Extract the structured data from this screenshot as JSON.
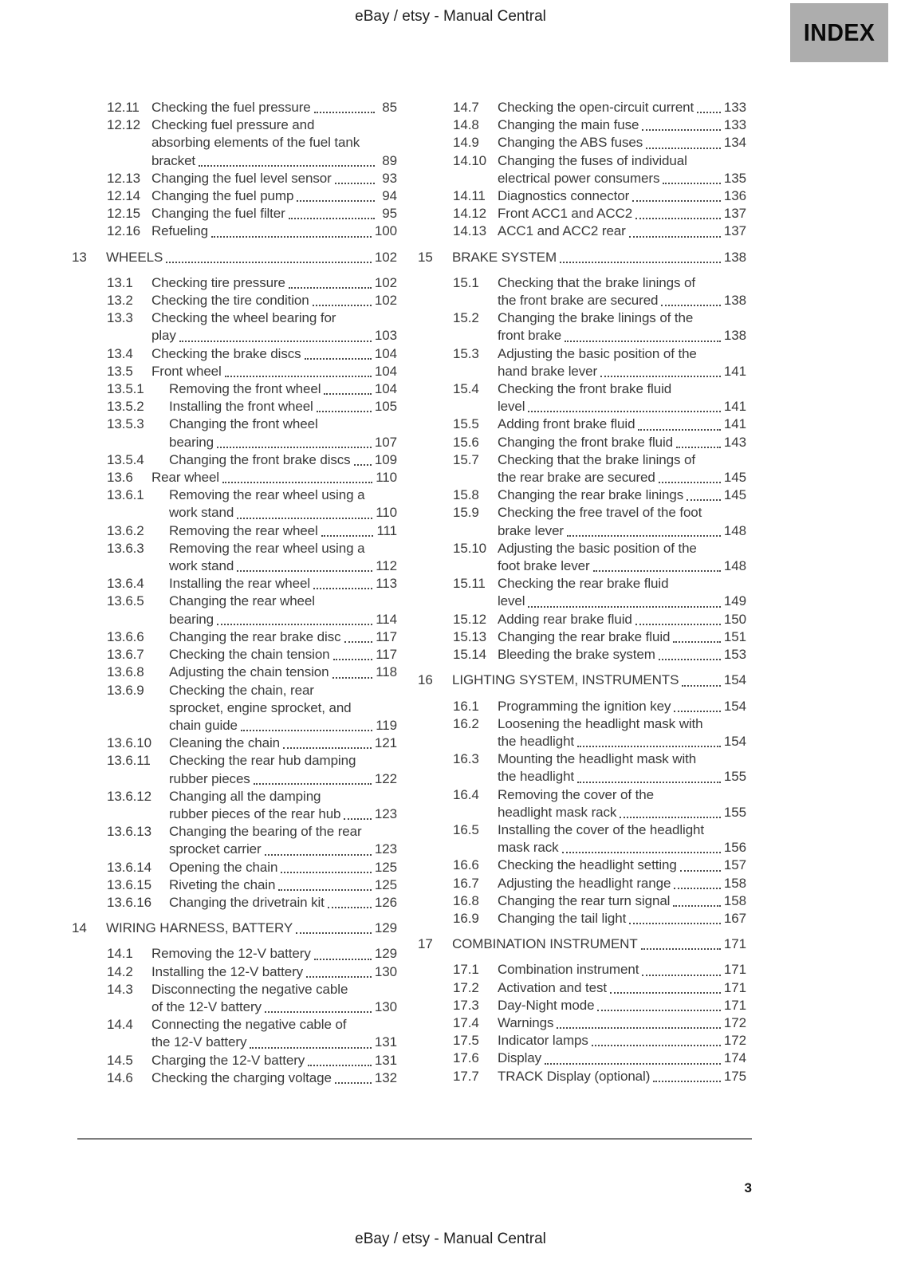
{
  "header": {
    "title": "eBay / etsy - Manual Central",
    "index_label": "INDEX"
  },
  "footer": {
    "page_number": "3",
    "title": "eBay / etsy - Manual Central"
  },
  "colors": {
    "index_badge_bg": "#adadad",
    "text": "#3a3a3a",
    "rule": "#7d7d7d"
  },
  "toc": {
    "columns": [
      {
        "side": "left",
        "entries": [
          {
            "num": "12.11",
            "level": 2,
            "lines": [
              "Checking the fuel pressure"
            ],
            "page": "85"
          },
          {
            "num": "12.12",
            "level": 2,
            "lines": [
              "Checking fuel pressure and",
              "absorbing elements of the fuel tank",
              "bracket"
            ],
            "page": "89"
          },
          {
            "num": "12.13",
            "level": 2,
            "lines": [
              "Changing the fuel level sensor"
            ],
            "page": "93"
          },
          {
            "num": "12.14",
            "level": 2,
            "lines": [
              "Changing the fuel pump"
            ],
            "page": "94"
          },
          {
            "num": "12.15",
            "level": 2,
            "lines": [
              "Changing the fuel filter"
            ],
            "page": "95"
          },
          {
            "num": "12.16",
            "level": 2,
            "lines": [
              "Refueling"
            ],
            "page": "100"
          },
          {
            "num": "13",
            "level": 1,
            "lines": [
              "WHEELS"
            ],
            "page": "102"
          },
          {
            "num": "13.1",
            "level": 2,
            "lines": [
              "Checking tire pressure"
            ],
            "page": "102"
          },
          {
            "num": "13.2",
            "level": 2,
            "lines": [
              "Checking the tire condition"
            ],
            "page": "102"
          },
          {
            "num": "13.3",
            "level": 2,
            "lines": [
              "Checking the wheel bearing for",
              "play"
            ],
            "page": "103"
          },
          {
            "num": "13.4",
            "level": 2,
            "lines": [
              "Checking the brake discs"
            ],
            "page": "104"
          },
          {
            "num": "13.5",
            "level": 2,
            "lines": [
              "Front wheel"
            ],
            "page": "104"
          },
          {
            "num": "13.5.1",
            "level": 3,
            "lines": [
              "Removing the front wheel"
            ],
            "page": "104"
          },
          {
            "num": "13.5.2",
            "level": 3,
            "lines": [
              "Installing the front wheel"
            ],
            "page": "105"
          },
          {
            "num": "13.5.3",
            "level": 3,
            "lines": [
              "Changing the front wheel",
              "bearing"
            ],
            "page": "107"
          },
          {
            "num": "13.5.4",
            "level": 3,
            "lines": [
              "Changing the front brake discs"
            ],
            "page": "109"
          },
          {
            "num": "13.6",
            "level": 2,
            "lines": [
              "Rear wheel"
            ],
            "page": "110"
          },
          {
            "num": "13.6.1",
            "level": 3,
            "lines": [
              "Removing the rear wheel using a",
              "work stand"
            ],
            "page": "110"
          },
          {
            "num": "13.6.2",
            "level": 3,
            "lines": [
              "Removing the rear wheel"
            ],
            "page": "111"
          },
          {
            "num": "13.6.3",
            "level": 3,
            "lines": [
              "Removing the rear wheel using a",
              "work stand"
            ],
            "page": "112"
          },
          {
            "num": "13.6.4",
            "level": 3,
            "lines": [
              "Installing the rear wheel"
            ],
            "page": "113"
          },
          {
            "num": "13.6.5",
            "level": 3,
            "lines": [
              "Changing the rear wheel",
              "bearing"
            ],
            "page": "114"
          },
          {
            "num": "13.6.6",
            "level": 3,
            "lines": [
              "Changing the rear brake disc"
            ],
            "page": "117"
          },
          {
            "num": "13.6.7",
            "level": 3,
            "lines": [
              "Checking the chain tension"
            ],
            "page": "117"
          },
          {
            "num": "13.6.8",
            "level": 3,
            "lines": [
              "Adjusting the chain tension"
            ],
            "page": "118"
          },
          {
            "num": "13.6.9",
            "level": 3,
            "lines": [
              "Checking the chain, rear",
              "sprocket, engine sprocket, and",
              "chain guide"
            ],
            "page": "119"
          },
          {
            "num": "13.6.10",
            "level": 3,
            "lines": [
              "Cleaning the chain"
            ],
            "page": "121"
          },
          {
            "num": "13.6.11",
            "level": 3,
            "lines": [
              "Checking the rear hub damping",
              "rubber pieces"
            ],
            "page": "122"
          },
          {
            "num": "13.6.12",
            "level": 3,
            "lines": [
              "Changing all the damping",
              "rubber pieces of the rear hub"
            ],
            "page": "123"
          },
          {
            "num": "13.6.13",
            "level": 3,
            "lines": [
              "Changing the bearing of the rear",
              "sprocket carrier"
            ],
            "page": "123"
          },
          {
            "num": "13.6.14",
            "level": 3,
            "lines": [
              "Opening the chain"
            ],
            "page": "125"
          },
          {
            "num": "13.6.15",
            "level": 3,
            "lines": [
              "Riveting the chain"
            ],
            "page": "125"
          },
          {
            "num": "13.6.16",
            "level": 3,
            "lines": [
              "Changing the drivetrain kit"
            ],
            "page": "126"
          },
          {
            "num": "14",
            "level": 1,
            "lines": [
              "WIRING HARNESS, BATTERY"
            ],
            "page": "129"
          },
          {
            "num": "14.1",
            "level": 2,
            "lines": [
              "Removing the 12-V battery"
            ],
            "page": "129"
          },
          {
            "num": "14.2",
            "level": 2,
            "lines": [
              "Installing the 12-V battery"
            ],
            "page": "130"
          },
          {
            "num": "14.3",
            "level": 2,
            "lines": [
              "Disconnecting the negative cable",
              "of the 12-V battery"
            ],
            "page": "130"
          },
          {
            "num": "14.4",
            "level": 2,
            "lines": [
              "Connecting the negative cable of",
              "the 12-V battery"
            ],
            "page": "131"
          },
          {
            "num": "14.5",
            "level": 2,
            "lines": [
              "Charging the 12-V battery"
            ],
            "page": "131"
          },
          {
            "num": "14.6",
            "level": 2,
            "lines": [
              "Checking the charging voltage"
            ],
            "page": "132"
          }
        ]
      },
      {
        "side": "right",
        "entries": [
          {
            "num": "14.7",
            "level": 2,
            "lines": [
              "Checking the open-circuit current"
            ],
            "page": "133"
          },
          {
            "num": "14.8",
            "level": 2,
            "lines": [
              "Changing the main fuse"
            ],
            "page": "133"
          },
          {
            "num": "14.9",
            "level": 2,
            "lines": [
              "Changing the ABS fuses"
            ],
            "page": "134"
          },
          {
            "num": "14.10",
            "level": 2,
            "lines": [
              "Changing the fuses of individual",
              "electrical power consumers"
            ],
            "page": "135"
          },
          {
            "num": "14.11",
            "level": 2,
            "lines": [
              "Diagnostics connector"
            ],
            "page": "136"
          },
          {
            "num": "14.12",
            "level": 2,
            "lines": [
              "Front ACC1 and ACC2"
            ],
            "page": "137"
          },
          {
            "num": "14.13",
            "level": 2,
            "lines": [
              "ACC1 and ACC2 rear"
            ],
            "page": "137"
          },
          {
            "num": "15",
            "level": 1,
            "lines": [
              "BRAKE SYSTEM"
            ],
            "page": "138"
          },
          {
            "num": "15.1",
            "level": 2,
            "lines": [
              "Checking that the brake linings of",
              "the front brake are secured"
            ],
            "page": "138"
          },
          {
            "num": "15.2",
            "level": 2,
            "lines": [
              "Changing the brake linings of the",
              "front brake"
            ],
            "page": "138"
          },
          {
            "num": "15.3",
            "level": 2,
            "lines": [
              "Adjusting the basic position of the",
              "hand brake lever"
            ],
            "page": "141"
          },
          {
            "num": "15.4",
            "level": 2,
            "lines": [
              "Checking the front brake fluid",
              "level"
            ],
            "page": "141"
          },
          {
            "num": "15.5",
            "level": 2,
            "lines": [
              "Adding front brake fluid"
            ],
            "page": "141"
          },
          {
            "num": "15.6",
            "level": 2,
            "lines": [
              "Changing the front brake fluid"
            ],
            "page": "143"
          },
          {
            "num": "15.7",
            "level": 2,
            "lines": [
              "Checking that the brake linings of",
              "the rear brake are secured"
            ],
            "page": "145"
          },
          {
            "num": "15.8",
            "level": 2,
            "lines": [
              "Changing the rear brake linings"
            ],
            "page": "145"
          },
          {
            "num": "15.9",
            "level": 2,
            "lines": [
              "Checking the free travel of the foot",
              "brake lever"
            ],
            "page": "148"
          },
          {
            "num": "15.10",
            "level": 2,
            "lines": [
              "Adjusting the basic position of the",
              "foot brake lever"
            ],
            "page": "148"
          },
          {
            "num": "15.11",
            "level": 2,
            "lines": [
              "Checking the rear brake fluid",
              "level"
            ],
            "page": "149"
          },
          {
            "num": "15.12",
            "level": 2,
            "lines": [
              "Adding rear brake fluid"
            ],
            "page": "150"
          },
          {
            "num": "15.13",
            "level": 2,
            "lines": [
              "Changing the rear brake fluid"
            ],
            "page": "151"
          },
          {
            "num": "15.14",
            "level": 2,
            "lines": [
              "Bleeding the brake system"
            ],
            "page": "153"
          },
          {
            "num": "16",
            "level": 1,
            "lines": [
              "LIGHTING SYSTEM, INSTRUMENTS"
            ],
            "page": "154"
          },
          {
            "num": "16.1",
            "level": 2,
            "lines": [
              "Programming the ignition key"
            ],
            "page": "154"
          },
          {
            "num": "16.2",
            "level": 2,
            "lines": [
              "Loosening the headlight mask with",
              "the headlight"
            ],
            "page": "154"
          },
          {
            "num": "16.3",
            "level": 2,
            "lines": [
              "Mounting the headlight mask with",
              "the headlight"
            ],
            "page": "155"
          },
          {
            "num": "16.4",
            "level": 2,
            "lines": [
              "Removing the cover of the",
              "headlight mask rack"
            ],
            "page": "155"
          },
          {
            "num": "16.5",
            "level": 2,
            "lines": [
              "Installing the cover of the headlight",
              "mask rack"
            ],
            "page": "156"
          },
          {
            "num": "16.6",
            "level": 2,
            "lines": [
              "Checking the headlight setting"
            ],
            "page": "157"
          },
          {
            "num": "16.7",
            "level": 2,
            "lines": [
              "Adjusting the headlight range"
            ],
            "page": "158"
          },
          {
            "num": "16.8",
            "level": 2,
            "lines": [
              "Changing the rear turn signal"
            ],
            "page": "158"
          },
          {
            "num": "16.9",
            "level": 2,
            "lines": [
              "Changing the tail light"
            ],
            "page": "167"
          },
          {
            "num": "17",
            "level": 1,
            "lines": [
              "COMBINATION INSTRUMENT"
            ],
            "page": "171"
          },
          {
            "num": "17.1",
            "level": 2,
            "lines": [
              "Combination instrument"
            ],
            "page": "171"
          },
          {
            "num": "17.2",
            "level": 2,
            "lines": [
              "Activation and test"
            ],
            "page": "171"
          },
          {
            "num": "17.3",
            "level": 2,
            "lines": [
              "Day-Night mode"
            ],
            "page": "171"
          },
          {
            "num": "17.4",
            "level": 2,
            "lines": [
              "Warnings"
            ],
            "page": "172"
          },
          {
            "num": "17.5",
            "level": 2,
            "lines": [
              "Indicator lamps"
            ],
            "page": "172"
          },
          {
            "num": "17.6",
            "level": 2,
            "lines": [
              "Display"
            ],
            "page": "174"
          },
          {
            "num": "17.7",
            "level": 2,
            "lines": [
              "TRACK Display (optional)"
            ],
            "page": "175"
          }
        ]
      }
    ]
  }
}
